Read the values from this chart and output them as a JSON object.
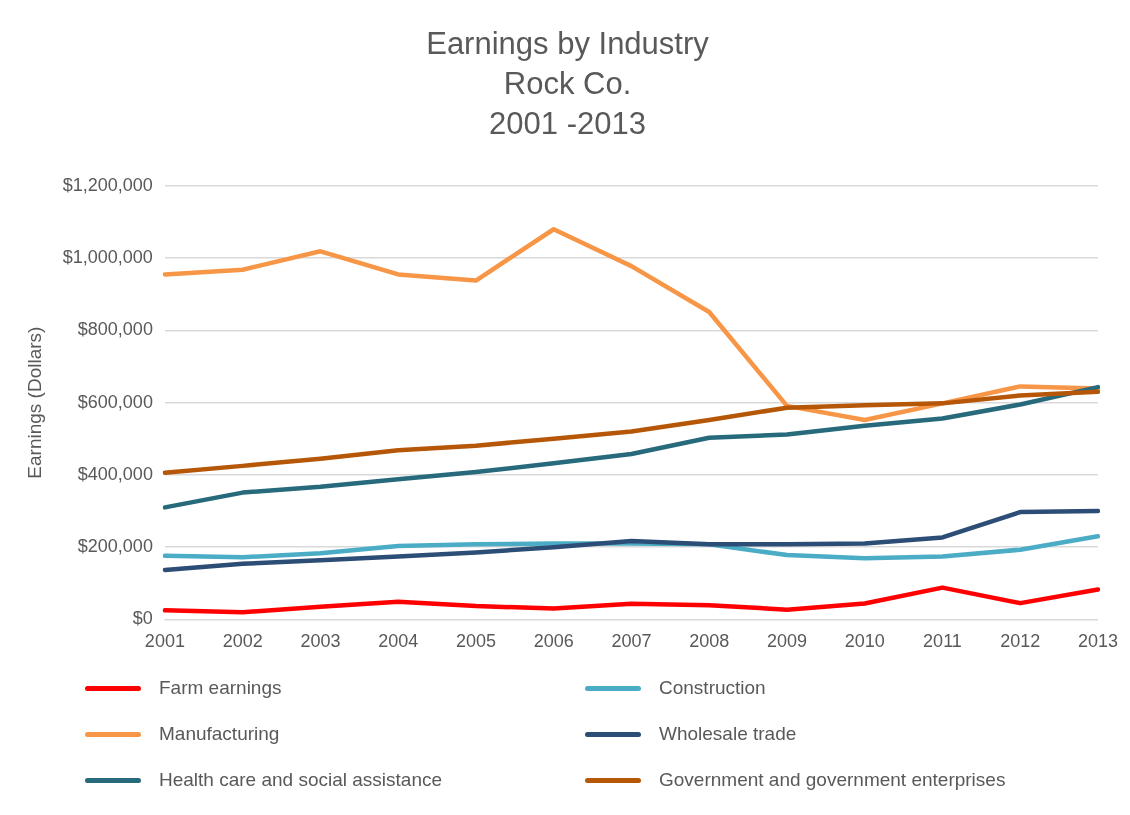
{
  "chart_data": {
    "type": "line",
    "title": "Earnings by Industry\nRock Co.\n2001 -2013",
    "ylabel": "Earnings (Dollars)",
    "categories": [
      "2001",
      "2002",
      "2003",
      "2004",
      "2005",
      "2006",
      "2007",
      "2008",
      "2009",
      "2010",
      "2011",
      "2012",
      "2013"
    ],
    "ylim": [
      0,
      1200000
    ],
    "yticks": [
      {
        "value": 0,
        "label": "$0"
      },
      {
        "value": 200000,
        "label": "$200,000"
      },
      {
        "value": 400000,
        "label": "$400,000"
      },
      {
        "value": 600000,
        "label": "$600,000"
      },
      {
        "value": 800000,
        "label": "$800,000"
      },
      {
        "value": 1000000,
        "label": "$1,000,000"
      },
      {
        "value": 1200000,
        "label": "$1,200,000"
      }
    ],
    "grid": "y",
    "legend": "bottom",
    "marker": "none",
    "line_style": "solid",
    "series": [
      {
        "name": "Farm earnings",
        "color": "#ff0000",
        "values": [
          25000,
          20000,
          35000,
          49000,
          37000,
          30000,
          43000,
          39000,
          27000,
          44000,
          88000,
          45000,
          83000
        ]
      },
      {
        "name": "Construction",
        "color": "#4bacc6",
        "values": [
          176000,
          172000,
          183000,
          203000,
          208000,
          210000,
          210000,
          208000,
          178000,
          169000,
          174000,
          193000,
          230000
        ]
      },
      {
        "name": "Manufacturing",
        "color": "#f79646",
        "values": [
          955000,
          968000,
          1019000,
          955000,
          938000,
          1080000,
          978000,
          851000,
          591000,
          552000,
          598000,
          645000,
          639000
        ]
      },
      {
        "name": "Wholesale trade",
        "color": "#2c4d75",
        "values": [
          137000,
          154000,
          164000,
          174000,
          185000,
          200000,
          217000,
          208000,
          208000,
          210000,
          227000,
          297000,
          300000
        ]
      },
      {
        "name": "Health care and social assistance",
        "color": "#276a7c",
        "values": [
          310000,
          351000,
          367000,
          388000,
          408000,
          432000,
          458000,
          503000,
          512000,
          536000,
          556000,
          595000,
          643000
        ]
      },
      {
        "name": "Government and government enterprises",
        "color": "#b65708",
        "values": [
          406000,
          425000,
          445000,
          468000,
          481000,
          500000,
          520000,
          552000,
          586000,
          593000,
          598000,
          620000,
          630000
        ]
      }
    ]
  }
}
